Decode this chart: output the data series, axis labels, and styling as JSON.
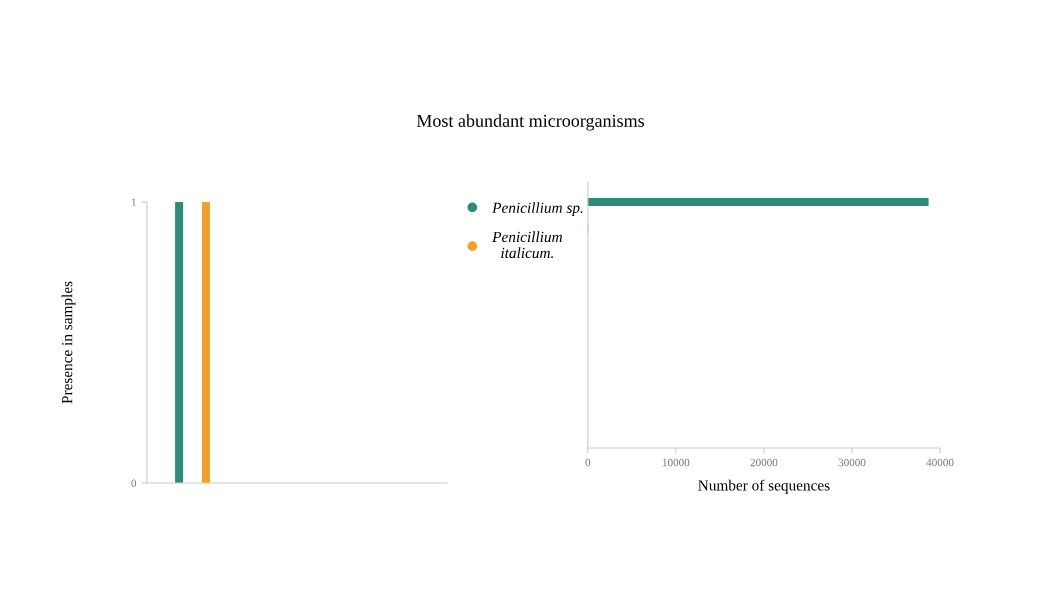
{
  "chart_data": [
    {
      "type": "bar",
      "ylabel": "Presence in samples",
      "categories": [
        null,
        null
      ],
      "values": [
        1,
        1
      ],
      "colors": [
        "#2e8b7a",
        "#f0a12c"
      ],
      "ylim": [
        0,
        1
      ],
      "yticks": [
        0,
        1
      ],
      "tick_labels": "y"
    },
    {
      "type": "bar",
      "orientation": "horizontal",
      "title": "Most abundant microorganisms",
      "xlabel": "Number of sequences",
      "categories": [
        null,
        null
      ],
      "series": [
        {
          "name": "Penicillium sp.",
          "color": "#2e8b7a",
          "values": [
            38700,
            null
          ]
        },
        {
          "name": "Penicillium italicum.",
          "color": "#f0a12c",
          "values": [
            null,
            100
          ]
        }
      ],
      "xlim": [
        0,
        40000
      ],
      "xticks": [
        0,
        10000,
        20000,
        30000,
        40000
      ],
      "tick_labels": "x",
      "legend": "left"
    }
  ]
}
